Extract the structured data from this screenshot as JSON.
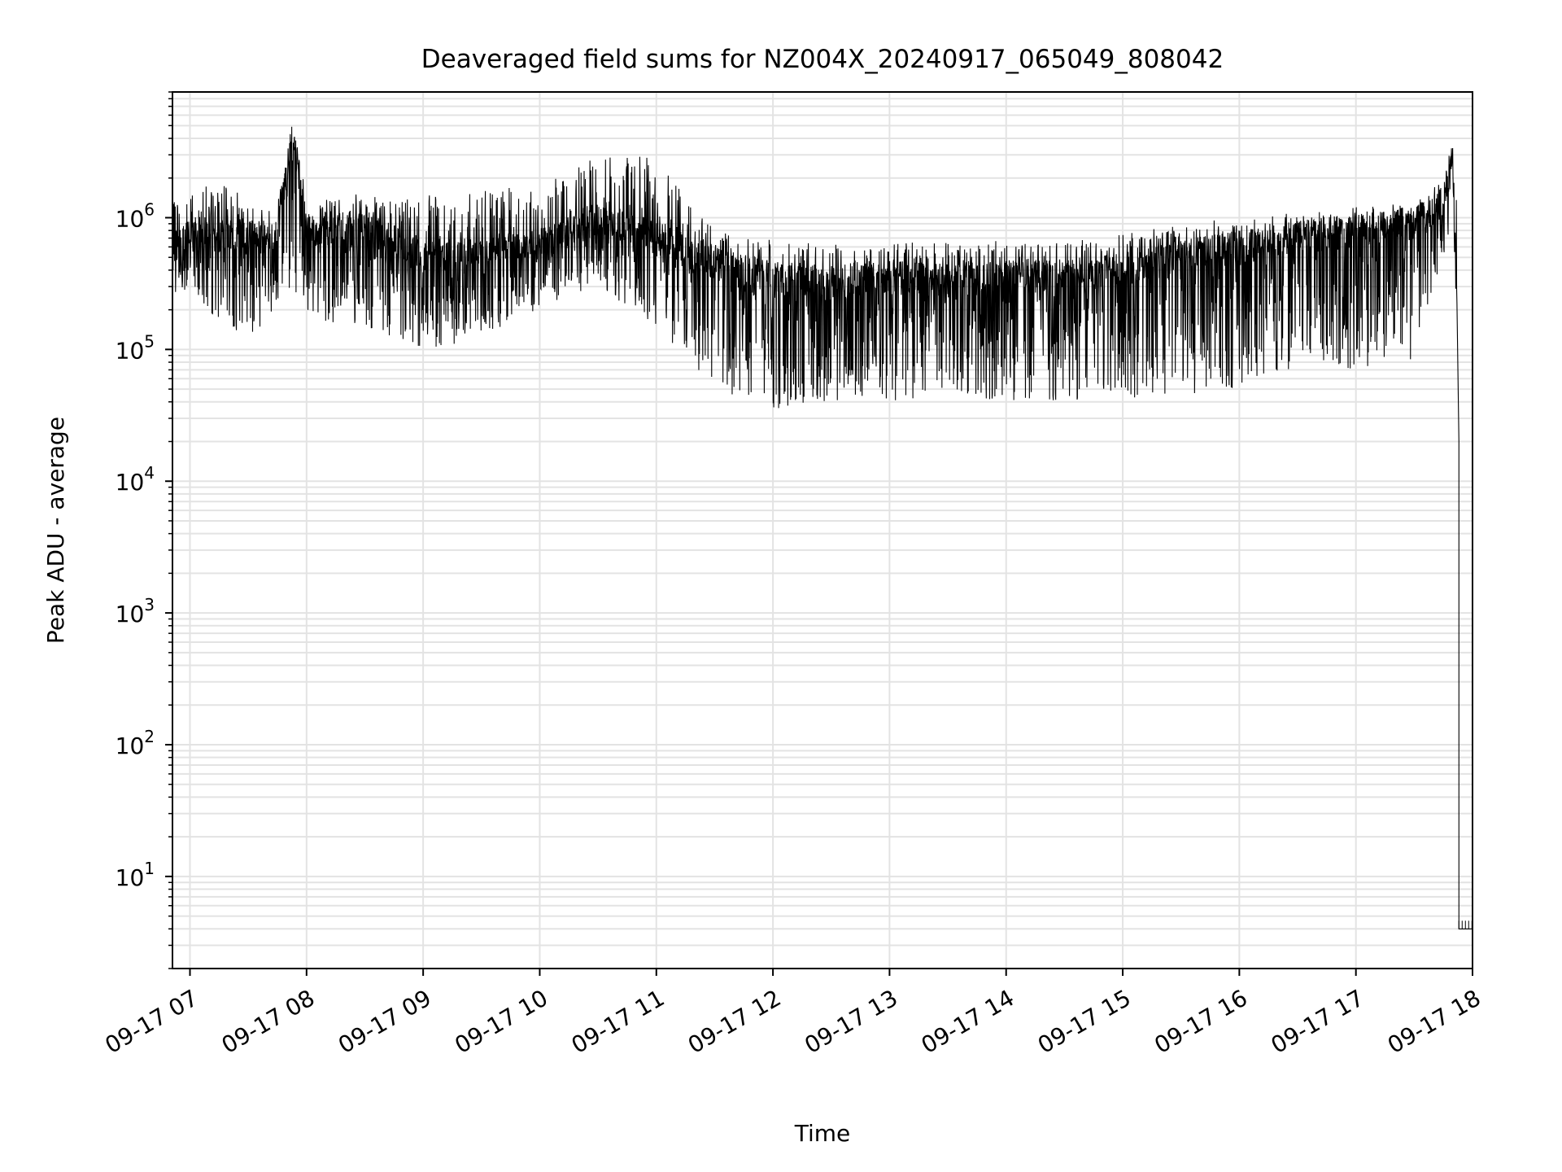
{
  "chart_data": {
    "type": "line",
    "title": "Deaveraged field sums for NZ004X_20240917_065049_808042",
    "xlabel": "Time",
    "ylabel": "Peak ADU - average",
    "yscale": "log",
    "ylim": [
      2,
      9000000
    ],
    "xlim": [
      "2024-09-17 06:51",
      "2024-09-17 18:00"
    ],
    "grid": true,
    "line_color": "#000000",
    "grid_color": "#e3e3e3",
    "x_ticks": [
      "09-17 07",
      "09-17 08",
      "09-17 09",
      "09-17 10",
      "09-17 11",
      "09-17 12",
      "09-17 13",
      "09-17 14",
      "09-17 15",
      "09-17 16",
      "09-17 17",
      "09-17 18"
    ],
    "y_ticks": [
      {
        "value": 10,
        "base": "10",
        "exp": "1"
      },
      {
        "value": 100,
        "base": "10",
        "exp": "2"
      },
      {
        "value": 1000,
        "base": "10",
        "exp": "3"
      },
      {
        "value": 10000,
        "base": "10",
        "exp": "4"
      },
      {
        "value": 100000,
        "base": "10",
        "exp": "5"
      },
      {
        "value": 1000000,
        "base": "10",
        "exp": "6"
      }
    ],
    "series": [
      {
        "x": [
          "2024-09-17 06:51",
          "2024-09-17 07:00",
          "2024-09-17 07:15",
          "2024-09-17 07:30",
          "2024-09-17 07:45",
          "2024-09-17 07:53",
          "2024-09-17 08:00",
          "2024-09-17 08:30",
          "2024-09-17 09:00",
          "2024-09-17 09:30",
          "2024-09-17 10:00",
          "2024-09-17 10:30",
          "2024-09-17 11:00",
          "2024-09-17 11:30",
          "2024-09-17 12:00",
          "2024-09-17 12:30",
          "2024-09-17 13:00",
          "2024-09-17 13:30",
          "2024-09-17 14:00",
          "2024-09-17 14:30",
          "2024-09-17 15:00",
          "2024-09-17 15:30",
          "2024-09-17 16:00",
          "2024-09-17 16:30",
          "2024-09-17 17:00",
          "2024-09-17 17:30",
          "2024-09-17 17:45",
          "2024-09-17 17:50",
          "2024-09-17 17:52",
          "2024-09-17 17:53",
          "2024-09-17 18:00"
        ],
        "y": [
          600000,
          700000,
          800000,
          700000,
          750000,
          4500000,
          800000,
          850000,
          500000,
          550000,
          600000,
          1000000,
          700000,
          450000,
          350000,
          330000,
          350000,
          330000,
          350000,
          350000,
          400000,
          500000,
          600000,
          700000,
          800000,
          900000,
          1200000,
          3500000,
          200000,
          4,
          4
        ],
        "min": [
          250000,
          300000,
          150000,
          120000,
          200000,
          250000,
          150000,
          150000,
          100000,
          120000,
          200000,
          300000,
          150000,
          50000,
          35000,
          40000,
          40000,
          45000,
          40000,
          40000,
          40000,
          45000,
          50000,
          70000,
          70000,
          80000,
          500000,
          1000000,
          150000,
          4,
          4
        ],
        "max": [
          1500000,
          1800000,
          1800000,
          1500000,
          1500000,
          4500000,
          1500000,
          1500000,
          1500000,
          1600000,
          1800000,
          3000000,
          3000000,
          800000,
          700000,
          650000,
          650000,
          650000,
          680000,
          700000,
          750000,
          900000,
          1000000,
          1100000,
          1200000,
          1300000,
          2000000,
          4200000,
          1500000,
          4,
          4
        ]
      }
    ]
  }
}
